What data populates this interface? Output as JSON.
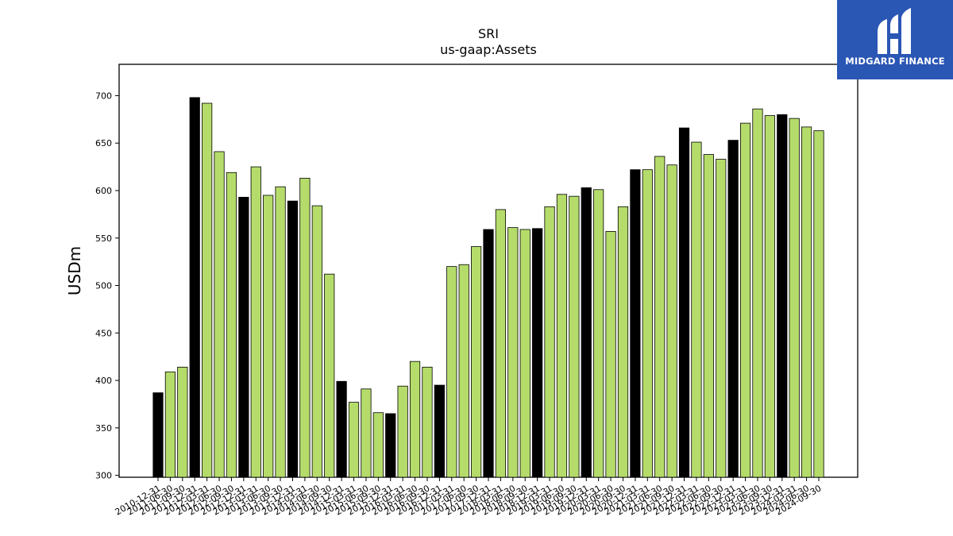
{
  "brand": {
    "name": "MIDGARD FINANCE",
    "bg_color": "#2a56b4"
  },
  "chart_data": {
    "type": "bar",
    "title": "SRI",
    "subtitle": "us-gaap:Assets",
    "xlabel": "",
    "ylabel": "USDm",
    "ylim": [
      298,
      733
    ],
    "yticks": [
      300,
      350,
      400,
      450,
      500,
      550,
      600,
      650,
      700
    ],
    "grid": false,
    "colors": {
      "annual": "#000000",
      "quarterly": "#b5dc6b"
    },
    "categories": [
      "2010-12-31",
      "2011-06-30",
      "2011-09-30",
      "2011-12-31",
      "2012-03-31",
      "2012-06-30",
      "2012-09-30",
      "2012-12-31",
      "2013-03-31",
      "2013-06-30",
      "2013-09-30",
      "2013-12-31",
      "2014-03-31",
      "2014-06-30",
      "2014-09-30",
      "2014-12-31",
      "2015-03-31",
      "2015-06-30",
      "2015-09-30",
      "2015-12-31",
      "2016-03-31",
      "2016-06-30",
      "2016-09-30",
      "2016-12-31",
      "2017-03-31",
      "2017-06-30",
      "2017-09-30",
      "2017-12-31",
      "2018-03-31",
      "2018-06-30",
      "2018-09-30",
      "2018-12-31",
      "2019-03-31",
      "2019-06-30",
      "2019-09-30",
      "2019-12-31",
      "2020-03-31",
      "2020-06-30",
      "2020-09-30",
      "2020-12-31",
      "2021-03-31",
      "2021-06-30",
      "2021-09-30",
      "2021-12-31",
      "2022-03-31",
      "2022-06-30",
      "2022-09-30",
      "2022-12-31",
      "2023-03-31",
      "2023-06-30",
      "2023-09-30",
      "2023-12-31",
      "2024-03-31",
      "2024-06-30",
      "2024-09-30"
    ],
    "values": [
      387,
      409,
      414,
      698,
      692,
      641,
      619,
      593,
      625,
      595,
      604,
      589,
      613,
      584,
      512,
      399,
      377,
      391,
      366,
      365,
      394,
      420,
      414,
      395,
      520,
      522,
      541,
      559,
      580,
      561,
      559,
      560,
      583,
      596,
      594,
      603,
      601,
      557,
      583,
      622,
      622,
      636,
      627,
      666,
      651,
      638,
      633,
      653,
      671,
      686,
      679,
      680,
      676,
      667,
      663
    ],
    "annual_flags": [
      true,
      false,
      false,
      true,
      false,
      false,
      false,
      true,
      false,
      false,
      false,
      true,
      false,
      false,
      false,
      true,
      false,
      false,
      false,
      true,
      false,
      false,
      false,
      true,
      false,
      false,
      false,
      true,
      false,
      false,
      false,
      true,
      false,
      false,
      false,
      true,
      false,
      false,
      false,
      true,
      false,
      false,
      false,
      true,
      false,
      false,
      false,
      true,
      false,
      false,
      false,
      true,
      false,
      false,
      false
    ]
  }
}
